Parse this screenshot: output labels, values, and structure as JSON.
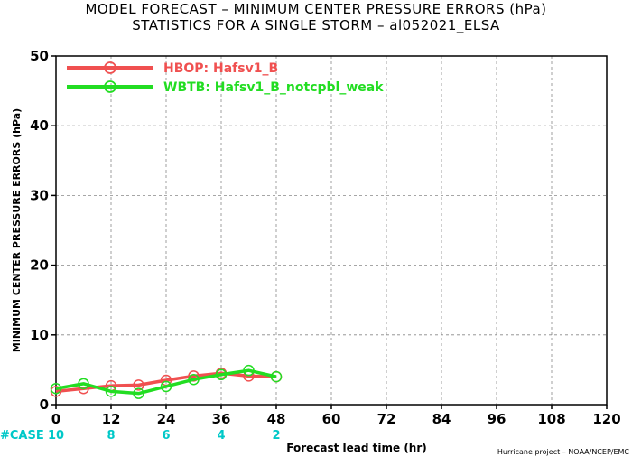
{
  "title_line1": "MODEL FORECAST – MINIMUM CENTER PRESSURE ERRORS (hPa)",
  "title_line2": "STATISTICS FOR A SINGLE STORM – al052021_ELSA",
  "credit": "Hurricane project – NOAA/NCEP/EMC",
  "case_label": "#CASE",
  "case_color": "#00c8c8",
  "chart_data": {
    "type": "line",
    "title": "MODEL FORECAST – MINIMUM CENTER PRESSURE ERRORS (hPa)",
    "subtitle": "STATISTICS FOR A SINGLE STORM – al052021_ELSA",
    "xlabel": "Forecast lead time (hr)",
    "ylabel": "MINIMUM CENTER PRESSURE ERRORS (hPa)",
    "xlim": [
      0,
      120
    ],
    "ylim": [
      0,
      50
    ],
    "xticks": [
      "0",
      "12",
      "24",
      "36",
      "48",
      "60",
      "72",
      "84",
      "96",
      "108",
      "120"
    ],
    "xtick_values": [
      0,
      12,
      24,
      36,
      48,
      60,
      72,
      84,
      96,
      108,
      120
    ],
    "yticks": [
      "0",
      "10",
      "20",
      "30",
      "40",
      "50"
    ],
    "ytick_values": [
      0,
      10,
      20,
      30,
      40,
      50
    ],
    "grid": true,
    "legend_position": "top-left",
    "series": [
      {
        "name": "HBOP: Hafsv1_B",
        "color": "#f05050",
        "x": [
          0,
          6,
          12,
          18,
          24,
          30,
          36,
          42,
          48
        ],
        "y": [
          1.9,
          2.3,
          2.7,
          2.8,
          3.5,
          4.1,
          4.5,
          4.1,
          4.0
        ]
      },
      {
        "name": "WBTB: Hafsv1_B_notcpbl_weak",
        "color": "#22dd22",
        "x": [
          0,
          6,
          12,
          18,
          24,
          30,
          36,
          42,
          48
        ],
        "y": [
          2.3,
          3.0,
          1.9,
          1.6,
          2.6,
          3.6,
          4.3,
          4.9,
          4.0
        ]
      }
    ],
    "cases": [
      {
        "x": 0,
        "label": "10"
      },
      {
        "x": 12,
        "label": "8"
      },
      {
        "x": 24,
        "label": "6"
      },
      {
        "x": 36,
        "label": "4"
      },
      {
        "x": 48,
        "label": "2"
      }
    ]
  }
}
